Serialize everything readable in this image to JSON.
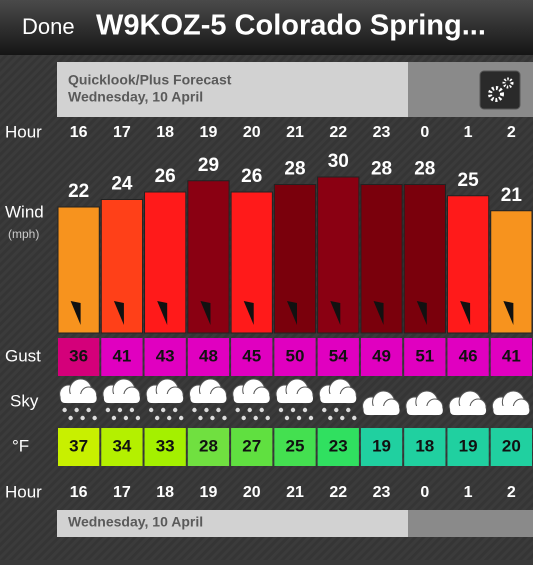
{
  "header": {
    "done": "Done",
    "title": "W9KOZ-5 Colorado Spring..."
  },
  "banner": {
    "title": "Quicklook/Plus Forecast",
    "date": "Wednesday, 10 April"
  },
  "labels": {
    "hour": "Hour",
    "wind": "Wind",
    "wind_unit": "(mph)",
    "gust": "Gust",
    "sky": "Sky",
    "temp": "°F"
  },
  "hours": [
    16,
    17,
    18,
    19,
    20,
    21,
    22,
    23,
    0,
    1,
    2
  ],
  "wind": {
    "values": [
      22,
      24,
      26,
      29,
      26,
      28,
      30,
      28,
      28,
      25,
      21
    ],
    "colors": [
      "#f7931e",
      "#ff4018",
      "#ff1a1a",
      "#8a0012",
      "#ff1a1a",
      "#7a000c",
      "#8a0012",
      "#7a000c",
      "#7a000c",
      "#ff1a1a",
      "#f7931e"
    ]
  },
  "gust": {
    "values": [
      36,
      41,
      43,
      48,
      45,
      50,
      54,
      49,
      51,
      46,
      41
    ],
    "colors": [
      "#d4007a",
      "#e000c0",
      "#e000c0",
      "#e000c0",
      "#e000c0",
      "#e000c0",
      "#e000c0",
      "#e000c0",
      "#e000c0",
      "#e000c0",
      "#e000c0"
    ]
  },
  "sky": [
    "snow",
    "snow",
    "snow",
    "snow",
    "snow",
    "snow",
    "snow",
    "cloud",
    "cloud",
    "cloud",
    "cloud"
  ],
  "temp": {
    "values": [
      37,
      34,
      33,
      28,
      27,
      25,
      23,
      19,
      18,
      19,
      20
    ],
    "colors": [
      "#c8f000",
      "#b4f000",
      "#a4f000",
      "#70e040",
      "#60e040",
      "#44e050",
      "#30e060",
      "#20d0a0",
      "#20d0a0",
      "#20d0a0",
      "#20d0a0"
    ]
  },
  "footer": {
    "date": "Wednesday, 10 April"
  }
}
